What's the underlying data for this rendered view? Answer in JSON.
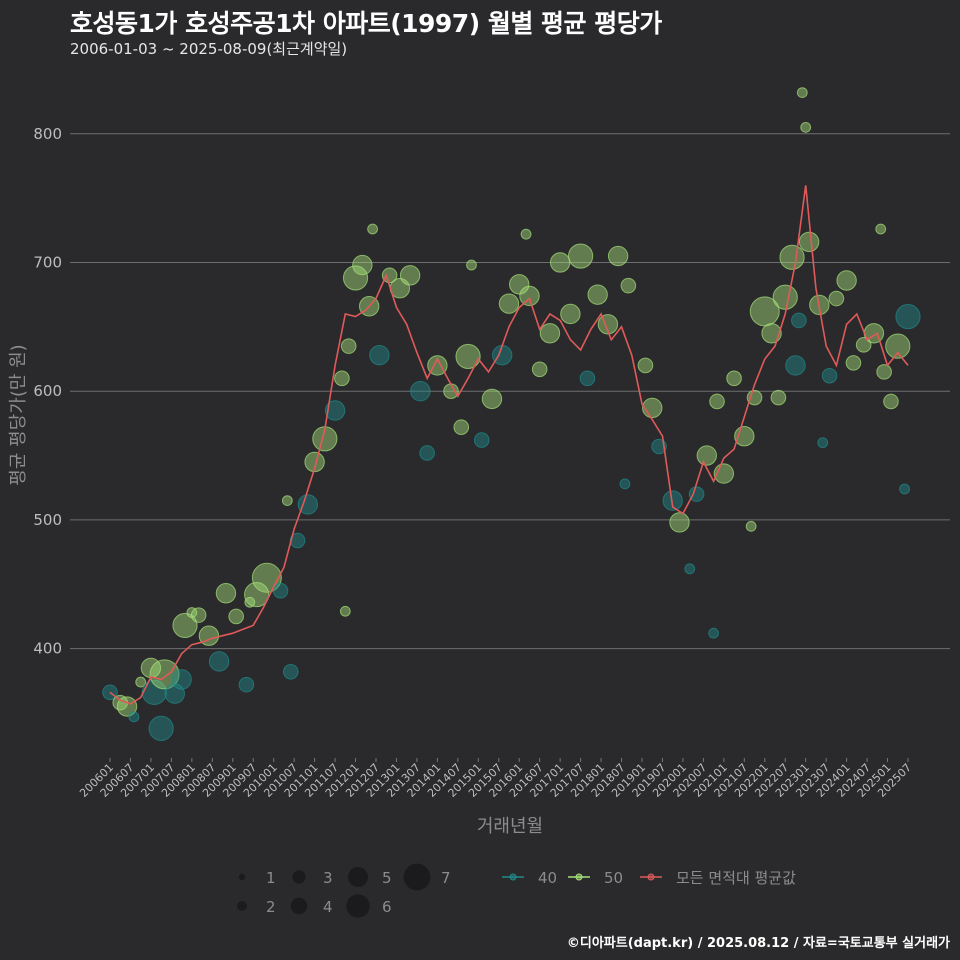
{
  "title": "호성동1가 호성주공1차 아파트(1997) 월별 평균 평당가",
  "subtitle": "2006-01-03 ~ 2025-08-09(최근계약일)",
  "credit": "©디아파트(dapt.kr) / 2025.08.12 / 자료=국토교통부 실거래가",
  "colors": {
    "s40": "#1f8a8a",
    "s50": "#a6e07a",
    "avg": "#e05a5a",
    "bg": "#2a2a2c"
  },
  "chart_data": {
    "type": "scatter",
    "title": "호성동1가 호성주공1차 아파트(1997) 월별 평균 평당가",
    "xlabel": "거래년월",
    "ylabel": "평균 평당가(만 원)",
    "ylim": [
      315,
      848
    ],
    "yticks": [
      400,
      500,
      600,
      700,
      800
    ],
    "x_start": "2006-01",
    "x_end": "2025-07",
    "xtick_labels": [
      "200601",
      "200607",
      "200701",
      "200707",
      "200801",
      "200807",
      "200901",
      "200907",
      "201001",
      "201007",
      "201101",
      "201107",
      "201201",
      "201207",
      "201301",
      "201307",
      "201401",
      "201407",
      "201501",
      "201507",
      "201601",
      "201607",
      "201701",
      "201707",
      "201801",
      "201807",
      "201901",
      "201907",
      "202001",
      "202007",
      "202101",
      "202107",
      "202201",
      "202207",
      "202301",
      "202307",
      "202401",
      "202407",
      "202501",
      "202507"
    ],
    "size_legend": [
      "1",
      "2",
      "3",
      "4",
      "5",
      "6",
      "7"
    ],
    "series_legend": [
      {
        "name": "40",
        "color": "#1f8a8a"
      },
      {
        "name": "50",
        "color": "#a6e07a"
      },
      {
        "name": "모든 면적대 평균값",
        "color": "#e05a5a"
      }
    ],
    "average_line": [
      [
        "2006-01",
        366
      ],
      [
        "2006-04",
        360
      ],
      [
        "2006-07",
        357
      ],
      [
        "2006-10",
        362
      ],
      [
        "2007-01",
        378
      ],
      [
        "2007-04",
        376
      ],
      [
        "2007-07",
        382
      ],
      [
        "2007-10",
        396
      ],
      [
        "2008-01",
        403
      ],
      [
        "2008-04",
        405
      ],
      [
        "2008-07",
        408
      ],
      [
        "2008-10",
        410
      ],
      [
        "2009-01",
        412
      ],
      [
        "2009-04",
        415
      ],
      [
        "2009-07",
        418
      ],
      [
        "2009-10",
        432
      ],
      [
        "2010-01",
        448
      ],
      [
        "2010-04",
        463
      ],
      [
        "2010-07",
        493
      ],
      [
        "2010-10",
        515
      ],
      [
        "2011-01",
        540
      ],
      [
        "2011-04",
        570
      ],
      [
        "2011-07",
        620
      ],
      [
        "2011-10",
        660
      ],
      [
        "2012-01",
        658
      ],
      [
        "2012-04",
        663
      ],
      [
        "2012-07",
        672
      ],
      [
        "2012-10",
        690
      ],
      [
        "2013-01",
        665
      ],
      [
        "2013-04",
        652
      ],
      [
        "2013-07",
        630
      ],
      [
        "2013-10",
        610
      ],
      [
        "2014-01",
        625
      ],
      [
        "2014-04",
        610
      ],
      [
        "2014-07",
        596
      ],
      [
        "2014-10",
        610
      ],
      [
        "2015-01",
        625
      ],
      [
        "2015-04",
        615
      ],
      [
        "2015-07",
        628
      ],
      [
        "2015-10",
        650
      ],
      [
        "2016-01",
        665
      ],
      [
        "2016-04",
        672
      ],
      [
        "2016-07",
        648
      ],
      [
        "2016-10",
        660
      ],
      [
        "2017-01",
        655
      ],
      [
        "2017-04",
        640
      ],
      [
        "2017-07",
        632
      ],
      [
        "2017-10",
        648
      ],
      [
        "2018-01",
        660
      ],
      [
        "2018-04",
        640
      ],
      [
        "2018-07",
        650
      ],
      [
        "2018-10",
        628
      ],
      [
        "2019-01",
        590
      ],
      [
        "2019-04",
        578
      ],
      [
        "2019-07",
        565
      ],
      [
        "2019-10",
        510
      ],
      [
        "2020-01",
        505
      ],
      [
        "2020-04",
        520
      ],
      [
        "2020-07",
        545
      ],
      [
        "2020-10",
        530
      ],
      [
        "2021-01",
        548
      ],
      [
        "2021-04",
        555
      ],
      [
        "2021-07",
        580
      ],
      [
        "2021-10",
        605
      ],
      [
        "2022-01",
        625
      ],
      [
        "2022-04",
        635
      ],
      [
        "2022-07",
        660
      ],
      [
        "2022-10",
        700
      ],
      [
        "2023-01",
        760
      ],
      [
        "2023-04",
        680
      ],
      [
        "2023-07",
        635
      ],
      [
        "2023-10",
        620
      ],
      [
        "2024-01",
        652
      ],
      [
        "2024-04",
        660
      ],
      [
        "2024-07",
        640
      ],
      [
        "2024-10",
        645
      ],
      [
        "2025-01",
        620
      ],
      [
        "2025-04",
        630
      ],
      [
        "2025-07",
        620
      ]
    ],
    "bubbles": [
      {
        "m": "2006-01",
        "v": 366,
        "n": 2,
        "s": 40
      },
      {
        "m": "2006-04",
        "v": 358,
        "n": 2,
        "s": 50
      },
      {
        "m": "2006-06",
        "v": 355,
        "n": 3,
        "s": 50
      },
      {
        "m": "2006-10",
        "v": 374,
        "n": 1,
        "s": 50
      },
      {
        "m": "2007-01",
        "v": 385,
        "n": 3,
        "s": 50
      },
      {
        "m": "2007-02",
        "v": 366,
        "n": 4,
        "s": 40
      },
      {
        "m": "2007-04",
        "v": 338,
        "n": 4,
        "s": 40
      },
      {
        "m": "2007-05",
        "v": 380,
        "n": 5,
        "s": 50
      },
      {
        "m": "2007-08",
        "v": 365,
        "n": 3,
        "s": 40
      },
      {
        "m": "2007-10",
        "v": 376,
        "n": 3,
        "s": 40
      },
      {
        "m": "2007-11",
        "v": 418,
        "n": 4,
        "s": 50
      },
      {
        "m": "2008-03",
        "v": 426,
        "n": 2,
        "s": 50
      },
      {
        "m": "2008-06",
        "v": 410,
        "n": 3,
        "s": 50
      },
      {
        "m": "2008-09",
        "v": 390,
        "n": 3,
        "s": 40
      },
      {
        "m": "2008-11",
        "v": 443,
        "n": 3,
        "s": 50
      },
      {
        "m": "2009-02",
        "v": 425,
        "n": 2,
        "s": 50
      },
      {
        "m": "2009-05",
        "v": 372,
        "n": 2,
        "s": 40
      },
      {
        "m": "2009-08",
        "v": 442,
        "n": 4,
        "s": 50
      },
      {
        "m": "2009-11",
        "v": 455,
        "n": 5,
        "s": 50
      },
      {
        "m": "2010-03",
        "v": 445,
        "n": 2,
        "s": 40
      },
      {
        "m": "2010-06",
        "v": 382,
        "n": 2,
        "s": 40
      },
      {
        "m": "2010-08",
        "v": 484,
        "n": 2,
        "s": 40
      },
      {
        "m": "2010-11",
        "v": 512,
        "n": 3,
        "s": 40
      },
      {
        "m": "2011-01",
        "v": 545,
        "n": 3,
        "s": 50
      },
      {
        "m": "2011-04",
        "v": 563,
        "n": 4,
        "s": 50
      },
      {
        "m": "2011-07",
        "v": 585,
        "n": 3,
        "s": 40
      },
      {
        "m": "2011-09",
        "v": 610,
        "n": 2,
        "s": 50
      },
      {
        "m": "2011-11",
        "v": 635,
        "n": 2,
        "s": 50
      },
      {
        "m": "2012-01",
        "v": 688,
        "n": 4,
        "s": 50
      },
      {
        "m": "2012-03",
        "v": 698,
        "n": 3,
        "s": 50
      },
      {
        "m": "2012-05",
        "v": 666,
        "n": 3,
        "s": 50
      },
      {
        "m": "2012-08",
        "v": 628,
        "n": 3,
        "s": 40
      },
      {
        "m": "2012-11",
        "v": 690,
        "n": 2,
        "s": 50
      },
      {
        "m": "2013-02",
        "v": 680,
        "n": 3,
        "s": 50
      },
      {
        "m": "2013-05",
        "v": 690,
        "n": 3,
        "s": 50
      },
      {
        "m": "2013-08",
        "v": 600,
        "n": 3,
        "s": 40
      },
      {
        "m": "2013-10",
        "v": 552,
        "n": 2,
        "s": 40
      },
      {
        "m": "2014-01",
        "v": 620,
        "n": 3,
        "s": 50
      },
      {
        "m": "2014-05",
        "v": 600,
        "n": 2,
        "s": 50
      },
      {
        "m": "2014-08",
        "v": 572,
        "n": 2,
        "s": 50
      },
      {
        "m": "2014-10",
        "v": 627,
        "n": 4,
        "s": 50
      },
      {
        "m": "2015-02",
        "v": 562,
        "n": 2,
        "s": 40
      },
      {
        "m": "2015-05",
        "v": 594,
        "n": 3,
        "s": 50
      },
      {
        "m": "2015-08",
        "v": 628,
        "n": 3,
        "s": 40
      },
      {
        "m": "2015-10",
        "v": 668,
        "n": 3,
        "s": 50
      },
      {
        "m": "2016-01",
        "v": 683,
        "n": 3,
        "s": 50
      },
      {
        "m": "2016-04",
        "v": 674,
        "n": 3,
        "s": 50
      },
      {
        "m": "2016-07",
        "v": 617,
        "n": 2,
        "s": 50
      },
      {
        "m": "2016-10",
        "v": 645,
        "n": 3,
        "s": 50
      },
      {
        "m": "2017-01",
        "v": 700,
        "n": 3,
        "s": 50
      },
      {
        "m": "2017-04",
        "v": 660,
        "n": 3,
        "s": 50
      },
      {
        "m": "2017-07",
        "v": 705,
        "n": 4,
        "s": 50
      },
      {
        "m": "2017-09",
        "v": 610,
        "n": 2,
        "s": 40
      },
      {
        "m": "2017-12",
        "v": 675,
        "n": 3,
        "s": 50
      },
      {
        "m": "2018-03",
        "v": 652,
        "n": 3,
        "s": 50
      },
      {
        "m": "2018-06",
        "v": 705,
        "n": 3,
        "s": 50
      },
      {
        "m": "2018-09",
        "v": 682,
        "n": 2,
        "s": 50
      },
      {
        "m": "2019-02",
        "v": 620,
        "n": 2,
        "s": 50
      },
      {
        "m": "2019-04",
        "v": 587,
        "n": 3,
        "s": 50
      },
      {
        "m": "2019-06",
        "v": 557,
        "n": 2,
        "s": 40
      },
      {
        "m": "2019-10",
        "v": 515,
        "n": 3,
        "s": 40
      },
      {
        "m": "2019-12",
        "v": 498,
        "n": 3,
        "s": 50
      },
      {
        "m": "2020-05",
        "v": 520,
        "n": 2,
        "s": 40
      },
      {
        "m": "2020-08",
        "v": 550,
        "n": 3,
        "s": 50
      },
      {
        "m": "2020-11",
        "v": 592,
        "n": 2,
        "s": 50
      },
      {
        "m": "2021-01",
        "v": 536,
        "n": 3,
        "s": 50
      },
      {
        "m": "2021-04",
        "v": 610,
        "n": 2,
        "s": 50
      },
      {
        "m": "2021-07",
        "v": 565,
        "n": 3,
        "s": 50
      },
      {
        "m": "2021-10",
        "v": 595,
        "n": 2,
        "s": 50
      },
      {
        "m": "2022-01",
        "v": 662,
        "n": 5,
        "s": 50
      },
      {
        "m": "2022-03",
        "v": 645,
        "n": 3,
        "s": 50
      },
      {
        "m": "2022-05",
        "v": 595,
        "n": 2,
        "s": 50
      },
      {
        "m": "2022-07",
        "v": 673,
        "n": 4,
        "s": 50
      },
      {
        "m": "2022-09",
        "v": 704,
        "n": 4,
        "s": 50
      },
      {
        "m": "2022-10",
        "v": 620,
        "n": 3,
        "s": 40
      },
      {
        "m": "2022-11",
        "v": 655,
        "n": 2,
        "s": 40
      },
      {
        "m": "2022-12",
        "v": 832,
        "n": 1,
        "s": 50
      },
      {
        "m": "2023-01",
        "v": 805,
        "n": 1,
        "s": 50
      },
      {
        "m": "2023-02",
        "v": 716,
        "n": 3,
        "s": 50
      },
      {
        "m": "2023-05",
        "v": 667,
        "n": 3,
        "s": 50
      },
      {
        "m": "2023-08",
        "v": 612,
        "n": 2,
        "s": 40
      },
      {
        "m": "2023-10",
        "v": 672,
        "n": 2,
        "s": 50
      },
      {
        "m": "2024-01",
        "v": 686,
        "n": 3,
        "s": 50
      },
      {
        "m": "2024-03",
        "v": 622,
        "n": 2,
        "s": 50
      },
      {
        "m": "2024-06",
        "v": 636,
        "n": 2,
        "s": 50
      },
      {
        "m": "2024-09",
        "v": 645,
        "n": 3,
        "s": 50
      },
      {
        "m": "2024-12",
        "v": 615,
        "n": 2,
        "s": 50
      },
      {
        "m": "2025-02",
        "v": 592,
        "n": 2,
        "s": 50
      },
      {
        "m": "2025-04",
        "v": 635,
        "n": 4,
        "s": 50
      },
      {
        "m": "2025-07",
        "v": 658,
        "n": 4,
        "s": 40
      },
      {
        "m": "2006-08",
        "v": 347,
        "n": 1,
        "s": 40
      },
      {
        "m": "2008-01",
        "v": 428,
        "n": 1,
        "s": 50
      },
      {
        "m": "2009-06",
        "v": 436,
        "n": 1,
        "s": 50
      },
      {
        "m": "2010-05",
        "v": 515,
        "n": 1,
        "s": 50
      },
      {
        "m": "2012-06",
        "v": 726,
        "n": 1,
        "s": 50
      },
      {
        "m": "2014-11",
        "v": 698,
        "n": 1,
        "s": 50
      },
      {
        "m": "2016-03",
        "v": 722,
        "n": 1,
        "s": 50
      },
      {
        "m": "2018-08",
        "v": 528,
        "n": 1,
        "s": 40
      },
      {
        "m": "2020-03",
        "v": 462,
        "n": 1,
        "s": 40
      },
      {
        "m": "2020-10",
        "v": 412,
        "n": 1,
        "s": 40
      },
      {
        "m": "2021-09",
        "v": 495,
        "n": 1,
        "s": 50
      },
      {
        "m": "2023-06",
        "v": 560,
        "n": 1,
        "s": 40
      },
      {
        "m": "2024-11",
        "v": 726,
        "n": 1,
        "s": 50
      },
      {
        "m": "2025-06",
        "v": 524,
        "n": 1,
        "s": 40
      },
      {
        "m": "2011-10",
        "v": 429,
        "n": 1,
        "s": 50
      }
    ]
  }
}
